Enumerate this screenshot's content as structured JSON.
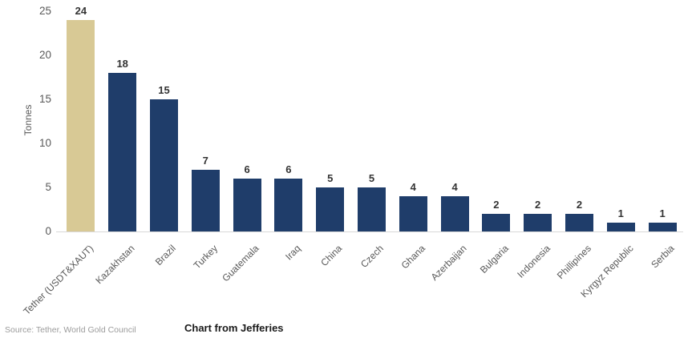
{
  "chart_data": {
    "type": "bar",
    "title": "",
    "ylabel": "Tonnes",
    "xlabel": "",
    "categories": [
      "Tether (USDT&XAUT)",
      "Kazakhstan",
      "Brazil",
      "Turkey",
      "Guatemala",
      "Iraq",
      "China",
      "Czech",
      "Ghana",
      "Azerbaijan",
      "Bulgaria",
      "Indonesia",
      "Phillipines",
      "Kyrgyz Republic",
      "Serbia"
    ],
    "values": [
      24,
      18,
      15,
      7,
      6,
      6,
      5,
      5,
      4,
      4,
      2,
      2,
      2,
      1,
      1
    ],
    "ylim": [
      0,
      25
    ],
    "yticks": [
      0,
      5,
      10,
      15,
      20,
      25
    ],
    "grid": false,
    "legend": "none",
    "value_labels": true,
    "highlight_index": 0,
    "colors": {
      "bar_default": "#1f3d6a",
      "bar_highlight": "#d8c995",
      "value_label": "#333333",
      "axis_text": "#595959",
      "axis_line": "#d9d9d9"
    }
  },
  "footer": {
    "source": "Source: Tether, World Gold Council",
    "caption": "Chart from Jefferies"
  }
}
